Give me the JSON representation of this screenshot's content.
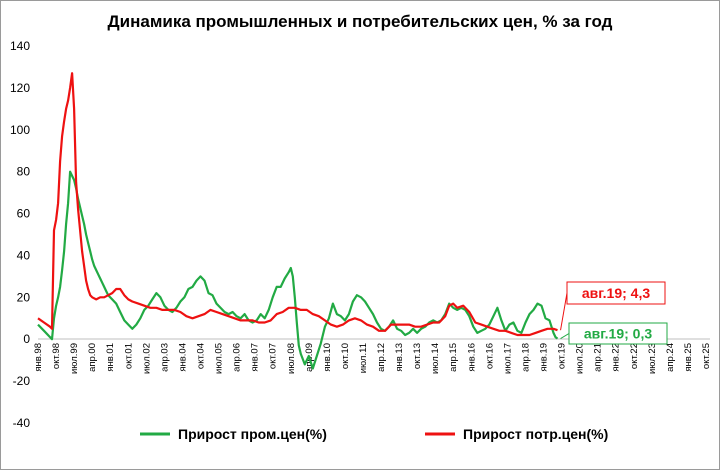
{
  "chart_data": {
    "type": "line",
    "title": "Динамика промышленных и потребительских цен, % за год",
    "xlabel": "",
    "ylabel": "",
    "ylim": [
      -40,
      140
    ],
    "yticks": [
      140,
      120,
      100,
      80,
      60,
      40,
      20,
      0,
      -20,
      -40
    ],
    "x_start": "1998-01",
    "x_end": "2025-12",
    "xtick_labels": [
      "янв.98",
      "окт.98",
      "июл.99",
      "апр.00",
      "янв.01",
      "окт.01",
      "июл.02",
      "апр.03",
      "янв.04",
      "окт.04",
      "июл.05",
      "апр.06",
      "янв.07",
      "окт.07",
      "июл.08",
      "апр.09",
      "янв.10",
      "окт.10",
      "июл.11",
      "апр.12",
      "янв.13",
      "окт.13",
      "июл.14",
      "апр.15",
      "янв.16",
      "окт.16",
      "июл.17",
      "апр.18",
      "янв.19",
      "окт.19",
      "июл.20",
      "апр.21",
      "янв.22",
      "окт.22",
      "июл.23",
      "апр.24",
      "янв.25",
      "окт.25"
    ],
    "grid": false,
    "legend_position": "bottom",
    "series": [
      {
        "name": "Прирост пром.цен(%)",
        "color": "#22aa44",
        "points": [
          [
            "1998-01",
            7
          ],
          [
            "1998-04",
            4
          ],
          [
            "1998-07",
            1
          ],
          [
            "1998-08",
            0
          ],
          [
            "1998-09",
            10
          ],
          [
            "1998-10",
            16
          ],
          [
            "1998-11",
            20
          ],
          [
            "1998-12",
            25
          ],
          [
            "1999-01",
            33
          ],
          [
            "1999-02",
            42
          ],
          [
            "1999-03",
            55
          ],
          [
            "1999-04",
            65
          ],
          [
            "1999-05",
            80
          ],
          [
            "1999-06",
            78
          ],
          [
            "1999-07",
            76
          ],
          [
            "1999-08",
            72
          ],
          [
            "1999-09",
            67
          ],
          [
            "1999-10",
            63
          ],
          [
            "1999-11",
            59
          ],
          [
            "1999-12",
            55
          ],
          [
            "2000-01",
            50
          ],
          [
            "2000-02",
            46
          ],
          [
            "2000-03",
            42
          ],
          [
            "2000-04",
            38
          ],
          [
            "2000-05",
            35
          ],
          [
            "2000-06",
            33
          ],
          [
            "2000-07",
            31
          ],
          [
            "2000-08",
            29
          ],
          [
            "2000-09",
            27
          ],
          [
            "2000-10",
            25
          ],
          [
            "2000-11",
            23
          ],
          [
            "2000-12",
            21
          ],
          [
            "2001-02",
            19
          ],
          [
            "2001-04",
            17
          ],
          [
            "2001-06",
            13
          ],
          [
            "2001-08",
            9
          ],
          [
            "2001-10",
            7
          ],
          [
            "2001-12",
            5
          ],
          [
            "2002-02",
            7
          ],
          [
            "2002-04",
            10
          ],
          [
            "2002-06",
            14
          ],
          [
            "2002-08",
            16
          ],
          [
            "2002-10",
            19
          ],
          [
            "2002-12",
            22
          ],
          [
            "2003-02",
            20
          ],
          [
            "2003-04",
            16
          ],
          [
            "2003-06",
            14
          ],
          [
            "2003-08",
            13
          ],
          [
            "2003-10",
            15
          ],
          [
            "2003-12",
            18
          ],
          [
            "2004-02",
            20
          ],
          [
            "2004-04",
            24
          ],
          [
            "2004-06",
            25
          ],
          [
            "2004-08",
            28
          ],
          [
            "2004-10",
            30
          ],
          [
            "2004-12",
            28
          ],
          [
            "2005-02",
            22
          ],
          [
            "2005-04",
            21
          ],
          [
            "2005-06",
            17
          ],
          [
            "2005-08",
            15
          ],
          [
            "2005-10",
            13
          ],
          [
            "2005-12",
            12
          ],
          [
            "2006-02",
            13
          ],
          [
            "2006-04",
            11
          ],
          [
            "2006-06",
            10
          ],
          [
            "2006-08",
            12
          ],
          [
            "2006-10",
            9
          ],
          [
            "2006-12",
            8
          ],
          [
            "2007-02",
            9
          ],
          [
            "2007-04",
            12
          ],
          [
            "2007-06",
            10
          ],
          [
            "2007-08",
            14
          ],
          [
            "2007-10",
            20
          ],
          [
            "2007-12",
            25
          ],
          [
            "2008-02",
            25
          ],
          [
            "2008-04",
            29
          ],
          [
            "2008-06",
            32
          ],
          [
            "2008-07",
            34
          ],
          [
            "2008-08",
            30
          ],
          [
            "2008-09",
            20
          ],
          [
            "2008-10",
            8
          ],
          [
            "2008-11",
            -3
          ],
          [
            "2008-12",
            -7
          ],
          [
            "2009-02",
            -12
          ],
          [
            "2009-04",
            -8
          ],
          [
            "2009-06",
            -14
          ],
          [
            "2009-08",
            -8
          ],
          [
            "2009-10",
            -2
          ],
          [
            "2009-12",
            6
          ],
          [
            "2010-02",
            10
          ],
          [
            "2010-04",
            17
          ],
          [
            "2010-06",
            12
          ],
          [
            "2010-08",
            11
          ],
          [
            "2010-10",
            9
          ],
          [
            "2010-12",
            12
          ],
          [
            "2011-02",
            18
          ],
          [
            "2011-04",
            21
          ],
          [
            "2011-06",
            20
          ],
          [
            "2011-08",
            18
          ],
          [
            "2011-10",
            15
          ],
          [
            "2011-12",
            12
          ],
          [
            "2012-02",
            8
          ],
          [
            "2012-04",
            5
          ],
          [
            "2012-06",
            4
          ],
          [
            "2012-08",
            6
          ],
          [
            "2012-10",
            9
          ],
          [
            "2012-12",
            5
          ],
          [
            "2013-02",
            4
          ],
          [
            "2013-04",
            2
          ],
          [
            "2013-06",
            3
          ],
          [
            "2013-08",
            5
          ],
          [
            "2013-10",
            3
          ],
          [
            "2013-12",
            5
          ],
          [
            "2014-02",
            6
          ],
          [
            "2014-04",
            8
          ],
          [
            "2014-06",
            9
          ],
          [
            "2014-08",
            8
          ],
          [
            "2014-10",
            9
          ],
          [
            "2014-12",
            12
          ],
          [
            "2015-02",
            17
          ],
          [
            "2015-04",
            15
          ],
          [
            "2015-06",
            14
          ],
          [
            "2015-08",
            15
          ],
          [
            "2015-10",
            14
          ],
          [
            "2015-12",
            11
          ],
          [
            "2016-02",
            6
          ],
          [
            "2016-04",
            3
          ],
          [
            "2016-06",
            4
          ],
          [
            "2016-08",
            5
          ],
          [
            "2016-10",
            7
          ],
          [
            "2016-12",
            11
          ],
          [
            "2017-02",
            15
          ],
          [
            "2017-04",
            9
          ],
          [
            "2017-06",
            4
          ],
          [
            "2017-08",
            7
          ],
          [
            "2017-10",
            8
          ],
          [
            "2017-12",
            4
          ],
          [
            "2018-02",
            3
          ],
          [
            "2018-04",
            8
          ],
          [
            "2018-06",
            12
          ],
          [
            "2018-08",
            14
          ],
          [
            "2018-10",
            17
          ],
          [
            "2018-12",
            16
          ],
          [
            "2019-02",
            10
          ],
          [
            "2019-04",
            9
          ],
          [
            "2019-06",
            3
          ],
          [
            "2019-07",
            1
          ],
          [
            "2019-08",
            0.3
          ]
        ]
      },
      {
        "name": "Прирост потр.цен(%)",
        "color": "#ee1111",
        "points": [
          [
            "1998-01",
            10
          ],
          [
            "1998-04",
            8
          ],
          [
            "1998-07",
            6
          ],
          [
            "1998-08",
            5
          ],
          [
            "1998-09",
            52
          ],
          [
            "1998-10",
            57
          ],
          [
            "1998-11",
            65
          ],
          [
            "1998-12",
            85
          ],
          [
            "1999-01",
            97
          ],
          [
            "1999-02",
            104
          ],
          [
            "1999-03",
            110
          ],
          [
            "1999-04",
            114
          ],
          [
            "1999-05",
            120
          ],
          [
            "1999-06",
            127
          ],
          [
            "1999-07",
            110
          ],
          [
            "1999-08",
            75
          ],
          [
            "1999-09",
            62
          ],
          [
            "1999-10",
            52
          ],
          [
            "1999-11",
            42
          ],
          [
            "1999-12",
            35
          ],
          [
            "2000-01",
            28
          ],
          [
            "2000-02",
            24
          ],
          [
            "2000-03",
            21
          ],
          [
            "2000-04",
            20
          ],
          [
            "2000-06",
            19
          ],
          [
            "2000-08",
            20
          ],
          [
            "2000-10",
            20
          ],
          [
            "2000-12",
            21
          ],
          [
            "2001-02",
            22
          ],
          [
            "2001-04",
            24
          ],
          [
            "2001-06",
            24
          ],
          [
            "2001-08",
            21
          ],
          [
            "2001-10",
            19
          ],
          [
            "2001-12",
            18
          ],
          [
            "2002-03",
            17
          ],
          [
            "2002-06",
            16
          ],
          [
            "2002-09",
            15
          ],
          [
            "2002-12",
            15
          ],
          [
            "2003-03",
            14
          ],
          [
            "2003-06",
            14
          ],
          [
            "2003-09",
            14
          ],
          [
            "2003-12",
            13
          ],
          [
            "2004-03",
            11
          ],
          [
            "2004-06",
            10
          ],
          [
            "2004-09",
            11
          ],
          [
            "2004-12",
            12
          ],
          [
            "2005-03",
            14
          ],
          [
            "2005-06",
            13
          ],
          [
            "2005-09",
            12
          ],
          [
            "2005-12",
            11
          ],
          [
            "2006-03",
            10
          ],
          [
            "2006-06",
            9
          ],
          [
            "2006-09",
            9
          ],
          [
            "2006-12",
            9
          ],
          [
            "2007-03",
            8
          ],
          [
            "2007-06",
            8
          ],
          [
            "2007-09",
            9
          ],
          [
            "2007-12",
            12
          ],
          [
            "2008-03",
            13
          ],
          [
            "2008-06",
            15
          ],
          [
            "2008-09",
            15
          ],
          [
            "2008-12",
            14
          ],
          [
            "2009-03",
            14
          ],
          [
            "2009-06",
            12
          ],
          [
            "2009-09",
            11
          ],
          [
            "2009-12",
            9
          ],
          [
            "2010-03",
            7
          ],
          [
            "2010-06",
            6
          ],
          [
            "2010-09",
            7
          ],
          [
            "2010-12",
            9
          ],
          [
            "2011-03",
            10
          ],
          [
            "2011-06",
            9
          ],
          [
            "2011-09",
            7
          ],
          [
            "2011-12",
            6
          ],
          [
            "2012-03",
            4
          ],
          [
            "2012-06",
            4
          ],
          [
            "2012-09",
            7
          ],
          [
            "2012-12",
            7
          ],
          [
            "2013-03",
            7
          ],
          [
            "2013-06",
            7
          ],
          [
            "2013-09",
            6
          ],
          [
            "2013-12",
            6
          ],
          [
            "2014-03",
            7
          ],
          [
            "2014-06",
            8
          ],
          [
            "2014-09",
            8
          ],
          [
            "2014-12",
            11
          ],
          [
            "2015-02",
            16
          ],
          [
            "2015-04",
            17
          ],
          [
            "2015-06",
            15
          ],
          [
            "2015-09",
            16
          ],
          [
            "2015-12",
            13
          ],
          [
            "2016-03",
            8
          ],
          [
            "2016-06",
            7
          ],
          [
            "2016-09",
            6
          ],
          [
            "2016-12",
            5
          ],
          [
            "2017-03",
            4
          ],
          [
            "2017-06",
            4
          ],
          [
            "2017-09",
            3
          ],
          [
            "2017-12",
            2
          ],
          [
            "2018-03",
            2
          ],
          [
            "2018-06",
            2
          ],
          [
            "2018-09",
            3
          ],
          [
            "2018-12",
            4
          ],
          [
            "2019-03",
            5
          ],
          [
            "2019-06",
            5
          ],
          [
            "2019-08",
            4.3
          ]
        ]
      }
    ],
    "annotations": [
      {
        "text": "авг.19; 4,3",
        "series": "Прирост потр.цен(%)",
        "date": "2019-08",
        "value": 4.3,
        "color": "#ee1111"
      },
      {
        "text": "авг.19; 0,3",
        "series": "Прирост пром.цен(%)",
        "date": "2019-08",
        "value": 0.3,
        "color": "#22aa44"
      }
    ]
  }
}
